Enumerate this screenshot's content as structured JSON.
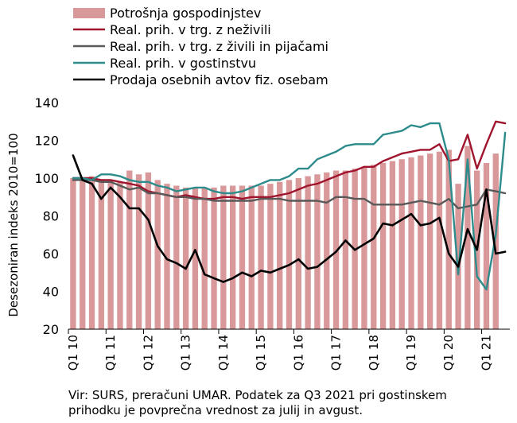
{
  "chart_data": {
    "type": "bar",
    "ylabel": "Desezoniran indeks 2010=100",
    "ylim": [
      20,
      140
    ],
    "yticks": [
      20,
      40,
      60,
      80,
      100,
      120,
      140
    ],
    "grid": false,
    "legend_position": "top",
    "x_labels": [
      {
        "label": "Q1 10",
        "index": 0
      },
      {
        "label": "Q1 11",
        "index": 4
      },
      {
        "label": "Q1 12",
        "index": 8
      },
      {
        "label": "Q1 13",
        "index": 12
      },
      {
        "label": "Q1 14",
        "index": 16
      },
      {
        "label": "Q1 15",
        "index": 20
      },
      {
        "label": "Q1 16",
        "index": 24
      },
      {
        "label": "Q1 17",
        "index": 28
      },
      {
        "label": "Q1 18",
        "index": 32
      },
      {
        "label": "Q1 19",
        "index": 36
      },
      {
        "label": "Q1 20",
        "index": 40
      },
      {
        "label": "Q1 21",
        "index": 44
      }
    ],
    "series": [
      {
        "name": "Potrošnja gospodinjstev",
        "kind": "bar",
        "color": "#D9999A",
        "values": [
          100,
          100,
          101,
          99,
          99,
          98,
          104,
          102,
          103,
          99,
          97,
          96,
          95,
          95,
          95,
          95,
          96,
          96,
          96,
          96,
          96,
          97,
          98,
          99,
          100,
          101,
          102,
          103,
          104,
          104,
          105,
          106,
          107,
          108,
          109,
          110,
          111,
          112,
          113,
          114,
          115,
          97,
          117,
          104,
          108,
          113
        ]
      },
      {
        "name": "Real. prih. v trg. z neživili",
        "kind": "line",
        "color": "#A0142D",
        "values": [
          100,
          100,
          100,
          99,
          99,
          98,
          97,
          96,
          93,
          92,
          91,
          90,
          91,
          90,
          89,
          89,
          90,
          90,
          89,
          90,
          90,
          90,
          91,
          92,
          94,
          96,
          97,
          99,
          101,
          103,
          104,
          106,
          106,
          109,
          111,
          113,
          114,
          115,
          115,
          118,
          109,
          110,
          123,
          105,
          118,
          130,
          129
        ]
      },
      {
        "name": "Real. prih. v trg. z živili in pijačami",
        "kind": "line",
        "color": "#595959",
        "values": [
          99,
          99,
          99,
          98,
          98,
          96,
          94,
          95,
          92,
          92,
          91,
          90,
          90,
          89,
          89,
          88,
          88,
          88,
          88,
          88,
          89,
          89,
          89,
          88,
          88,
          88,
          88,
          87,
          90,
          90,
          89,
          89,
          86,
          86,
          86,
          86,
          87,
          88,
          87,
          86,
          89,
          84,
          85,
          86,
          94,
          93,
          92
        ]
      },
      {
        "name": "Real. prih. v gostinstvu",
        "kind": "line",
        "color": "#2E8B8B",
        "values": [
          100,
          100,
          99,
          102,
          102,
          101,
          99,
          98,
          98,
          96,
          95,
          93,
          94,
          95,
          95,
          93,
          92,
          92,
          93,
          95,
          97,
          99,
          99,
          101,
          105,
          105,
          110,
          112,
          114,
          117,
          118,
          118,
          118,
          123,
          124,
          125,
          128,
          127,
          129,
          129,
          110,
          49,
          110,
          48,
          41,
          70,
          124
        ]
      },
      {
        "name": "Prodaja osebnih avtov fiz. osebam",
        "kind": "line",
        "color": "#000000",
        "values": [
          112,
          99,
          97,
          89,
          95,
          90,
          84,
          84,
          78,
          64,
          57,
          55,
          52,
          62,
          49,
          47,
          45,
          47,
          50,
          48,
          51,
          50,
          52,
          54,
          57,
          52,
          53,
          57,
          61,
          67,
          62,
          65,
          68,
          76,
          75,
          78,
          81,
          75,
          76,
          79,
          60,
          53,
          73,
          62,
          94,
          60,
          61
        ]
      }
    ]
  },
  "note": {
    "line1": "Vir: SURS, preračuni UMAR. Podatek za Q3 2021 pri gostinskem",
    "line2": "prihodku je povprečna vrednost za julij in avgust."
  }
}
